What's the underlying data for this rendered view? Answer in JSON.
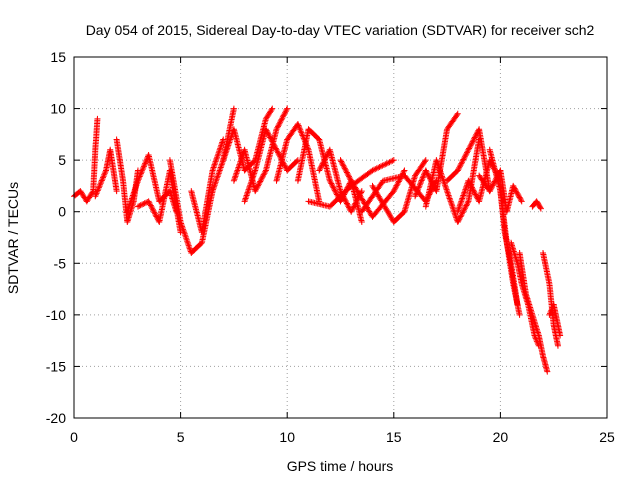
{
  "chart_data": {
    "type": "scatter",
    "title": "Day 054 of 2015, Sidereal Day-to-day VTEC variation (SDTVAR) for receiver sch2",
    "xlabel": "GPS time / hours",
    "ylabel": "SDTVAR / TECUs",
    "xlim": [
      0,
      25
    ],
    "ylim": [
      -20,
      15
    ],
    "xticks": [
      "0",
      "5",
      "10",
      "15",
      "20",
      "25"
    ],
    "yticks": [
      "15",
      "10",
      "5",
      "0",
      "-5",
      "-10",
      "-15",
      "-20"
    ],
    "grid": true,
    "marker": "+",
    "color": "#ff0000",
    "tracks": [
      {
        "name": "t1",
        "points": [
          [
            0,
            1.5
          ],
          [
            0.3,
            2.0
          ],
          [
            0.6,
            1.0
          ],
          [
            0.9,
            2.0
          ],
          [
            1.0,
            6.0
          ],
          [
            1.1,
            9.0
          ]
        ]
      },
      {
        "name": "t2",
        "points": [
          [
            1.0,
            1.5
          ],
          [
            1.5,
            4.0
          ],
          [
            1.7,
            6.0
          ],
          [
            2.0,
            2.0
          ]
        ]
      },
      {
        "name": "t3",
        "points": [
          [
            2.0,
            7.0
          ],
          [
            2.3,
            3.0
          ],
          [
            2.5,
            -1.0
          ],
          [
            2.8,
            1.0
          ],
          [
            3.0,
            4.0
          ]
        ]
      },
      {
        "name": "t4",
        "points": [
          [
            2.5,
            0.0
          ],
          [
            3.0,
            3.0
          ],
          [
            3.5,
            5.5
          ],
          [
            4.0,
            1.0
          ],
          [
            4.5,
            2.0
          ],
          [
            4.8,
            0.0
          ]
        ]
      },
      {
        "name": "t5",
        "points": [
          [
            3.0,
            0.5
          ],
          [
            3.5,
            1.0
          ],
          [
            4.0,
            -1.0
          ],
          [
            4.5,
            4.0
          ],
          [
            5.0,
            -2.0
          ]
        ]
      },
      {
        "name": "t6",
        "points": [
          [
            4.5,
            5.0
          ],
          [
            5.0,
            -1.0
          ],
          [
            5.5,
            -4.0
          ],
          [
            6.0,
            -3.0
          ],
          [
            6.5,
            2.0
          ],
          [
            7.0,
            5.0
          ],
          [
            7.5,
            10.0
          ]
        ]
      },
      {
        "name": "t7",
        "points": [
          [
            5.5,
            2.0
          ],
          [
            6.0,
            -2.0
          ],
          [
            6.5,
            4.0
          ],
          [
            7.0,
            7.0
          ]
        ]
      },
      {
        "name": "t8",
        "points": [
          [
            7.0,
            5.0
          ],
          [
            7.5,
            8.0
          ],
          [
            8.0,
            4.0
          ],
          [
            8.5,
            5.0
          ],
          [
            9.0,
            9.0
          ],
          [
            9.3,
            10.0
          ]
        ]
      },
      {
        "name": "t9",
        "points": [
          [
            7.5,
            3.0
          ],
          [
            8.0,
            6.0
          ],
          [
            8.5,
            2.0
          ],
          [
            9.0,
            4.0
          ],
          [
            9.5,
            8.0
          ],
          [
            10.0,
            10.0
          ]
        ]
      },
      {
        "name": "t10",
        "points": [
          [
            8.0,
            1.0
          ],
          [
            8.5,
            4.0
          ],
          [
            9.0,
            8.0
          ],
          [
            9.5,
            6.0
          ],
          [
            10.0,
            4.0
          ],
          [
            10.5,
            5.0
          ]
        ]
      },
      {
        "name": "t11",
        "points": [
          [
            9.5,
            3.0
          ],
          [
            10.0,
            7.0
          ],
          [
            10.5,
            8.5
          ],
          [
            11.0,
            6.0
          ],
          [
            11.5,
            1.0
          ]
        ]
      },
      {
        "name": "t12",
        "points": [
          [
            10.5,
            3.0
          ],
          [
            11.0,
            8.0
          ],
          [
            11.5,
            7.0
          ],
          [
            12.0,
            3.0
          ],
          [
            12.5,
            1.0
          ],
          [
            13.0,
            3.0
          ],
          [
            13.5,
            -1.0
          ]
        ]
      },
      {
        "name": "t13",
        "points": [
          [
            11.5,
            4.0
          ],
          [
            12.0,
            6.0
          ],
          [
            12.5,
            2.0
          ],
          [
            13.0,
            0.0
          ],
          [
            13.5,
            2.0
          ]
        ]
      },
      {
        "name": "t14",
        "points": [
          [
            11.0,
            1.0
          ],
          [
            12.0,
            0.5
          ],
          [
            13.0,
            2.5
          ],
          [
            14.0,
            4.0
          ],
          [
            15.0,
            5.0
          ]
        ]
      },
      {
        "name": "t15",
        "points": [
          [
            12.5,
            5.0
          ],
          [
            13.0,
            3.0
          ],
          [
            14.0,
            -0.5
          ],
          [
            15.0,
            2.0
          ],
          [
            15.5,
            4.0
          ]
        ]
      },
      {
        "name": "t16",
        "points": [
          [
            13.5,
            0.0
          ],
          [
            14.5,
            3.0
          ],
          [
            15.5,
            3.5
          ],
          [
            16.5,
            1.0
          ],
          [
            17.0,
            3.0
          ]
        ]
      },
      {
        "name": "t17",
        "points": [
          [
            14.0,
            2.5
          ],
          [
            15.0,
            -1.0
          ],
          [
            15.5,
            0.0
          ],
          [
            16.0,
            3.5
          ],
          [
            16.5,
            5.0
          ]
        ]
      },
      {
        "name": "t18",
        "points": [
          [
            16.0,
            1.5
          ],
          [
            16.5,
            4.0
          ],
          [
            17.0,
            2.0
          ],
          [
            17.5,
            8.0
          ],
          [
            18.0,
            9.5
          ]
        ]
      },
      {
        "name": "t19",
        "points": [
          [
            16.5,
            0.5
          ],
          [
            17.0,
            5.0
          ],
          [
            17.5,
            2.0
          ],
          [
            18.0,
            -1.0
          ],
          [
            18.5,
            1.0
          ],
          [
            19.0,
            7.0
          ]
        ]
      },
      {
        "name": "t20",
        "points": [
          [
            17.5,
            3.0
          ],
          [
            18.0,
            4.0
          ],
          [
            18.5,
            6.0
          ],
          [
            19.0,
            8.0
          ],
          [
            19.5,
            2.0
          ]
        ]
      },
      {
        "name": "t21",
        "points": [
          [
            18.0,
            0.0
          ],
          [
            18.5,
            3.0
          ],
          [
            19.0,
            1.0
          ],
          [
            19.5,
            5.0
          ],
          [
            20.0,
            3.0
          ]
        ]
      },
      {
        "name": "t22",
        "points": [
          [
            19.5,
            6.0
          ],
          [
            20.0,
            2.0
          ],
          [
            20.3,
            -3.0
          ],
          [
            20.6,
            -7.0
          ],
          [
            20.9,
            -10.0
          ]
        ]
      },
      {
        "name": "t23",
        "points": [
          [
            19.0,
            3.5
          ],
          [
            19.5,
            2.0
          ],
          [
            20.0,
            4.0
          ],
          [
            20.3,
            0.0
          ],
          [
            20.6,
            2.5
          ],
          [
            21.0,
            1.0
          ]
        ]
      },
      {
        "name": "t24",
        "points": [
          [
            20.0,
            2.0
          ],
          [
            20.2,
            -2.0
          ],
          [
            20.5,
            -5.0
          ],
          [
            20.8,
            -9.0
          ]
        ]
      },
      {
        "name": "t25",
        "points": [
          [
            20.5,
            -3.0
          ],
          [
            20.8,
            -5.0
          ],
          [
            21.0,
            -7.0
          ],
          [
            21.3,
            -9.0
          ],
          [
            21.6,
            -12.0
          ],
          [
            21.8,
            -13.0
          ]
        ]
      },
      {
        "name": "t26",
        "points": [
          [
            20.9,
            -4.0
          ],
          [
            21.2,
            -8.0
          ],
          [
            21.5,
            -10.0
          ],
          [
            21.8,
            -12.0
          ],
          [
            22.0,
            -14.0
          ],
          [
            22.2,
            -15.5
          ]
        ]
      },
      {
        "name": "t27",
        "points": [
          [
            21.5,
            0.5
          ],
          [
            21.7,
            1.0
          ],
          [
            21.9,
            0.3
          ]
        ]
      },
      {
        "name": "t28",
        "points": [
          [
            22.0,
            -4.0
          ],
          [
            22.3,
            -7.0
          ],
          [
            22.5,
            -11.0
          ],
          [
            22.7,
            -13.0
          ]
        ]
      },
      {
        "name": "t29",
        "points": [
          [
            22.3,
            -10.0
          ],
          [
            22.5,
            -9.0
          ],
          [
            22.7,
            -11.0
          ],
          [
            22.8,
            -12.0
          ]
        ]
      }
    ]
  }
}
